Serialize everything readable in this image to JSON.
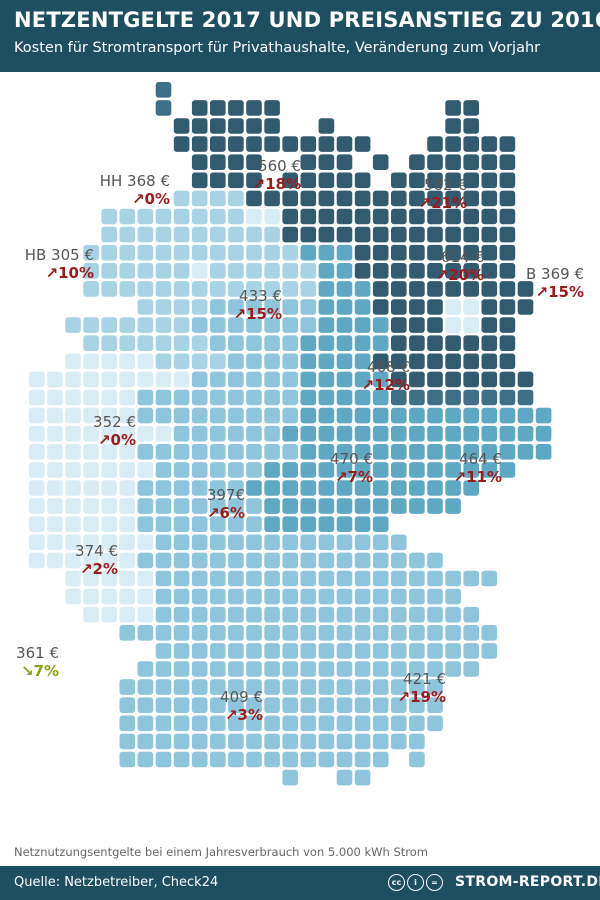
{
  "header": {
    "title": "NETZENTGELTE 2017 UND PREISANSTIEG ZU 2016",
    "subtitle": "Kosten für Stromtransport für Privathaushalte, Veränderung zum Vorjahr"
  },
  "map": {
    "colors": {
      "very_light": "#d7ecf5",
      "light": "#a8d3e5",
      "medium": "#8ec5dc",
      "medium_dark": "#5ea8c4",
      "dark": "#3f6f87",
      "darkest": "#335b70"
    },
    "regions": [
      {
        "prefix": "HH",
        "price": "368 €",
        "change": "0%",
        "direction": "up"
      },
      {
        "prefix": "",
        "price": "560 €",
        "change": "18%",
        "direction": "up"
      },
      {
        "prefix": "",
        "price": "582 €",
        "change": "21%",
        "direction": "up"
      },
      {
        "prefix": "HB",
        "price": "305 €",
        "change": "10%",
        "direction": "up"
      },
      {
        "prefix": "",
        "price": "614 €",
        "change": "20%",
        "direction": "up"
      },
      {
        "prefix": "B",
        "price": "369 €",
        "change": "15%",
        "direction": "up"
      },
      {
        "prefix": "",
        "price": "433 €",
        "change": "15%",
        "direction": "up"
      },
      {
        "prefix": "",
        "price": "468 €",
        "change": "12%",
        "direction": "up"
      },
      {
        "prefix": "",
        "price": "352 €",
        "change": "0%",
        "direction": "up"
      },
      {
        "prefix": "",
        "price": "470 €",
        "change": "7%",
        "direction": "up"
      },
      {
        "prefix": "",
        "price": "464 €",
        "change": "11%",
        "direction": "up"
      },
      {
        "prefix": "",
        "price": "397€",
        "change": "6%",
        "direction": "up"
      },
      {
        "prefix": "",
        "price": "374 €",
        "change": "2%",
        "direction": "up"
      },
      {
        "prefix": "",
        "price": "361 €",
        "change": "7%",
        "direction": "down"
      },
      {
        "prefix": "",
        "price": "421 €",
        "change": "19%",
        "direction": "up"
      },
      {
        "prefix": "",
        "price": "409 €",
        "change": "3%",
        "direction": "up"
      }
    ]
  },
  "note": "Netznutzungsentgelte bei einem Jahresverbrauch von 5.000 kWh Strom",
  "footer": {
    "source": "Quelle: Netzbetreiber, Check24",
    "license_icons": [
      "cc",
      "i",
      "="
    ],
    "brand": "STROM-REPORT.DE"
  }
}
